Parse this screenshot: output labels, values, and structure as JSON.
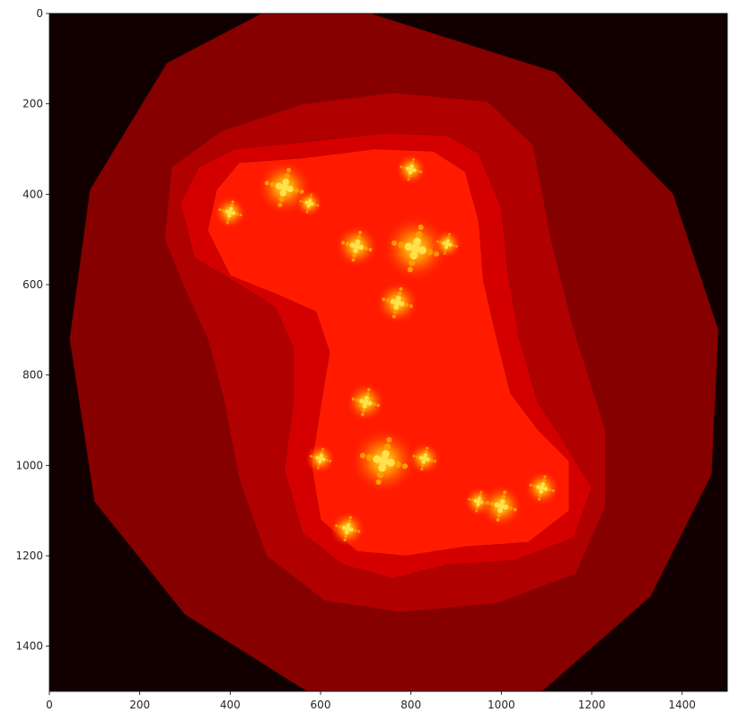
{
  "chart_data": {
    "type": "heatmap",
    "description_type": "image",
    "title": "",
    "xlabel": "",
    "ylabel": "",
    "xlim": [
      0,
      1500
    ],
    "ylim": [
      1500,
      0
    ],
    "y_inverted": true,
    "grid": false,
    "legend": "none",
    "colormap": "hot",
    "colors": {
      "background": "#120000",
      "outer_band": "#870000",
      "mid_band": "#b00000",
      "inner_band": "#d40000",
      "core": "#ff1a00",
      "fractal_glow": "#ff9a00",
      "fractal_hot": "#ffe24a"
    },
    "x_ticks": [
      {
        "value": 0,
        "label": "0"
      },
      {
        "value": 200,
        "label": "200"
      },
      {
        "value": 400,
        "label": "400"
      },
      {
        "value": 600,
        "label": "600"
      },
      {
        "value": 800,
        "label": "800"
      },
      {
        "value": 1000,
        "label": "1000"
      },
      {
        "value": 1200,
        "label": "1200"
      },
      {
        "value": 1400,
        "label": "1400"
      }
    ],
    "y_ticks": [
      {
        "value": 0,
        "label": "0"
      },
      {
        "value": 200,
        "label": "200"
      },
      {
        "value": 400,
        "label": "400"
      },
      {
        "value": 600,
        "label": "600"
      },
      {
        "value": 800,
        "label": "800"
      },
      {
        "value": 1000,
        "label": "1000"
      },
      {
        "value": 1200,
        "label": "1200"
      },
      {
        "value": 1400,
        "label": "1400"
      }
    ],
    "regions": {
      "outer": [
        [
          710,
          0
        ],
        [
          1120,
          130
        ],
        [
          1380,
          400
        ],
        [
          1480,
          700
        ],
        [
          1465,
          1020
        ],
        [
          1330,
          1290
        ],
        [
          1090,
          1500
        ],
        [
          570,
          1500
        ],
        [
          300,
          1330
        ],
        [
          100,
          1080
        ],
        [
          45,
          720
        ],
        [
          90,
          390
        ],
        [
          260,
          110
        ],
        [
          470,
          0
        ]
      ],
      "mid": [
        [
          560,
          200
        ],
        [
          760,
          175
        ],
        [
          970,
          195
        ],
        [
          1070,
          290
        ],
        [
          1110,
          500
        ],
        [
          1160,
          700
        ],
        [
          1230,
          920
        ],
        [
          1230,
          1090
        ],
        [
          1165,
          1240
        ],
        [
          990,
          1305
        ],
        [
          780,
          1325
        ],
        [
          610,
          1300
        ],
        [
          480,
          1200
        ],
        [
          420,
          1030
        ],
        [
          385,
          850
        ],
        [
          350,
          720
        ],
        [
          300,
          610
        ],
        [
          255,
          500
        ],
        [
          270,
          340
        ],
        [
          380,
          260
        ]
      ],
      "inner": [
        [
          410,
          300
        ],
        [
          560,
          285
        ],
        [
          740,
          265
        ],
        [
          880,
          270
        ],
        [
          950,
          310
        ],
        [
          1000,
          430
        ],
        [
          1015,
          580
        ],
        [
          1040,
          720
        ],
        [
          1080,
          860
        ],
        [
          1140,
          950
        ],
        [
          1200,
          1050
        ],
        [
          1160,
          1160
        ],
        [
          1030,
          1210
        ],
        [
          880,
          1220
        ],
        [
          760,
          1250
        ],
        [
          650,
          1220
        ],
        [
          560,
          1150
        ],
        [
          520,
          1010
        ],
        [
          540,
          860
        ],
        [
          540,
          740
        ],
        [
          500,
          650
        ],
        [
          420,
          600
        ],
        [
          320,
          540
        ],
        [
          290,
          420
        ],
        [
          330,
          340
        ]
      ],
      "core": [
        [
          420,
          330
        ],
        [
          560,
          320
        ],
        [
          720,
          300
        ],
        [
          850,
          305
        ],
        [
          920,
          350
        ],
        [
          950,
          460
        ],
        [
          960,
          590
        ],
        [
          990,
          720
        ],
        [
          1020,
          840
        ],
        [
          1080,
          920
        ],
        [
          1150,
          990
        ],
        [
          1150,
          1100
        ],
        [
          1060,
          1170
        ],
        [
          920,
          1180
        ],
        [
          790,
          1200
        ],
        [
          680,
          1190
        ],
        [
          600,
          1120
        ],
        [
          580,
          1000
        ],
        [
          600,
          870
        ],
        [
          620,
          750
        ],
        [
          590,
          660
        ],
        [
          500,
          620
        ],
        [
          400,
          580
        ],
        [
          350,
          480
        ],
        [
          370,
          390
        ]
      ]
    },
    "fractal_centers": [
      {
        "x": 520,
        "y": 385,
        "size": 70
      },
      {
        "x": 400,
        "y": 440,
        "size": 42
      },
      {
        "x": 575,
        "y": 420,
        "size": 35
      },
      {
        "x": 800,
        "y": 345,
        "size": 40
      },
      {
        "x": 810,
        "y": 520,
        "size": 85
      },
      {
        "x": 680,
        "y": 515,
        "size": 55
      },
      {
        "x": 880,
        "y": 510,
        "size": 38
      },
      {
        "x": 770,
        "y": 640,
        "size": 55
      },
      {
        "x": 700,
        "y": 860,
        "size": 50
      },
      {
        "x": 740,
        "y": 990,
        "size": 85
      },
      {
        "x": 600,
        "y": 985,
        "size": 38
      },
      {
        "x": 830,
        "y": 985,
        "size": 42
      },
      {
        "x": 660,
        "y": 1140,
        "size": 45
      },
      {
        "x": 950,
        "y": 1080,
        "size": 38
      },
      {
        "x": 1000,
        "y": 1090,
        "size": 55
      },
      {
        "x": 1090,
        "y": 1050,
        "size": 45
      }
    ]
  }
}
